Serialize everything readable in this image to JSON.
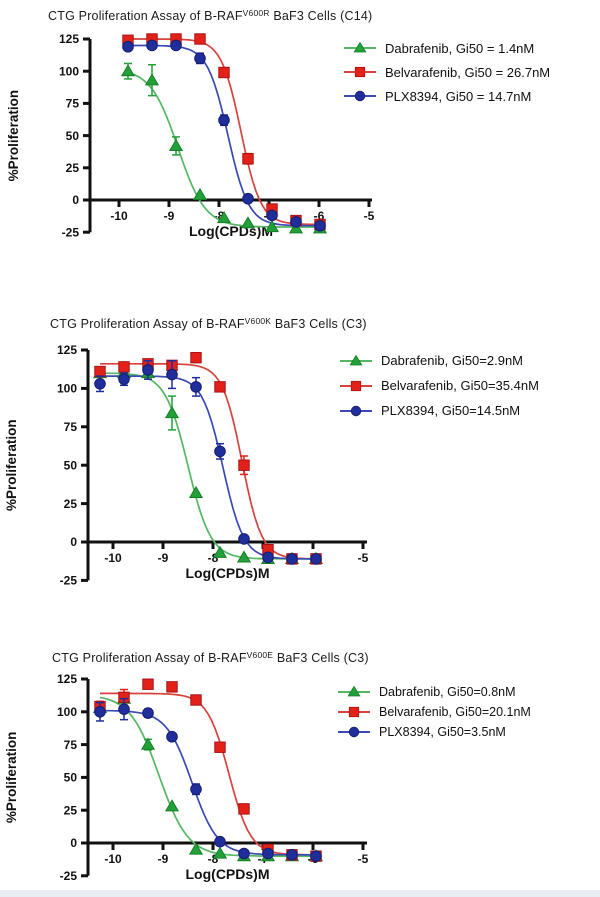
{
  "figure": {
    "background": "#ffffff",
    "bottom_strip_color": "#e8edf3"
  },
  "chart_data": [
    {
      "type": "line",
      "title_prefix": "CTG Proliferation Assay of B-RAF",
      "title_sup": "V600R",
      "title_suffix": " BaF3 Cells (C14)",
      "xlabel": "Log(CPDs)M",
      "ylabel": "%Proliferation",
      "xticks": [
        -10,
        -9,
        -8,
        -7,
        -6,
        -5
      ],
      "yticks": [
        125,
        100,
        75,
        50,
        25,
        0,
        -25
      ],
      "xlim": [
        -10.6,
        -4.9
      ],
      "ylim": [
        -25,
        130
      ],
      "legend_position": "right",
      "grid": false,
      "x": [
        -9.82,
        -9.34,
        -8.86,
        -8.38,
        -7.9,
        -7.42,
        -6.94,
        -6.46,
        -5.98
      ],
      "series": [
        {
          "name": "Dabrafenib",
          "legend": "Dabrafenib, Gi50 = 1.4nM",
          "gi50": "1.4nM",
          "marker": "triangle",
          "color": "#23a038",
          "edge": "#157f28",
          "line": "#55b763",
          "values": [
            100,
            93,
            42,
            4,
            -14,
            -18,
            -21,
            -22,
            -22
          ],
          "errors": [
            6,
            12,
            7,
            0,
            0,
            0,
            0,
            0,
            0
          ],
          "fit": {
            "top": 102,
            "bottom": -21,
            "logec50": -8.82,
            "hill": 1.6
          }
        },
        {
          "name": "Belvarafenib",
          "legend": "Belvarafenib, Gi50 = 26.7nM",
          "gi50": "26.7nM",
          "marker": "square",
          "color": "#e32119",
          "edge": "#a81313",
          "line": "#d8423c",
          "values": [
            124,
            125,
            125,
            125,
            99,
            32,
            -7,
            -16,
            -19
          ],
          "errors": [
            0,
            0,
            0,
            0,
            3,
            4,
            0,
            0,
            0
          ],
          "fit": {
            "top": 125,
            "bottom": -19,
            "logec50": -7.56,
            "hill": 2.2
          }
        },
        {
          "name": "PLX8394",
          "legend": "PLX8394, Gi50 = 14.7nM",
          "gi50": "14.7nM",
          "marker": "circle",
          "color": "#202e9c",
          "edge": "#141d6e",
          "line": "#3a49b4",
          "values": [
            119,
            120,
            120,
            110,
            62,
            1,
            -12,
            -17,
            -20
          ],
          "errors": [
            0,
            0,
            0,
            4,
            4,
            0,
            0,
            0,
            0
          ],
          "fit": {
            "top": 120,
            "bottom": -20,
            "logec50": -7.82,
            "hill": 2.1
          }
        }
      ]
    },
    {
      "type": "line",
      "title_prefix": "CTG Proliferation Assay of B-RAF",
      "title_sup": "V600K",
      "title_suffix": " BaF3 Cells (C3)",
      "xlabel": "Log(CPDs)M",
      "ylabel": "%Proliferation",
      "xticks": [
        -10,
        -9,
        -8,
        -7,
        -6,
        -5
      ],
      "yticks": [
        125,
        100,
        75,
        50,
        25,
        0,
        -25
      ],
      "xlim": [
        -10.6,
        -4.9
      ],
      "ylim": [
        -25,
        130
      ],
      "legend_position": "right",
      "grid": false,
      "x": [
        -10.26,
        -9.78,
        -9.3,
        -8.82,
        -8.34,
        -7.86,
        -7.38,
        -6.9,
        -6.42,
        -5.94
      ],
      "series": [
        {
          "name": "Dabrafenib",
          "legend": "Dabrafenib, Gi50=2.9nM",
          "gi50": "2.9nM",
          "marker": "triangle",
          "color": "#23a038",
          "edge": "#157f28",
          "line": "#55b763",
          "values": [
            110,
            110,
            110,
            84,
            32,
            -7,
            -10,
            -11,
            -11,
            -11
          ],
          "errors": [
            0,
            0,
            0,
            11,
            0,
            0,
            0,
            0,
            0,
            0
          ],
          "fit": {
            "top": 110,
            "bottom": -11,
            "logec50": -8.5,
            "hill": 1.9
          }
        },
        {
          "name": "Belvarafenib",
          "legend": "Belvarafenib, Gi50=35.4nM",
          "gi50": "35.4nM",
          "marker": "square",
          "color": "#e32119",
          "edge": "#a81313",
          "line": "#d8423c",
          "values": [
            111,
            114,
            116,
            115,
            120,
            101,
            50,
            -5,
            -11,
            -11
          ],
          "errors": [
            3,
            2,
            2,
            0,
            0,
            3,
            6,
            0,
            0,
            0
          ],
          "fit": {
            "top": 116,
            "bottom": -11,
            "logec50": -7.42,
            "hill": 2.2
          }
        },
        {
          "name": "PLX8394",
          "legend": "PLX8394, Gi50=14.5nM",
          "gi50": "14.5nM",
          "marker": "circle",
          "color": "#202e9c",
          "edge": "#141d6e",
          "line": "#3a49b4",
          "values": [
            103,
            106,
            112,
            109,
            101,
            59,
            2,
            -10,
            -11,
            -11
          ],
          "errors": [
            5,
            4,
            6,
            9,
            6,
            5,
            0,
            0,
            0,
            0
          ],
          "fit": {
            "top": 108,
            "bottom": -11,
            "logec50": -7.8,
            "hill": 2.1
          }
        }
      ]
    },
    {
      "type": "line",
      "title_prefix": "CTG Proliferation Assay of B-RAF",
      "title_sup": "V600E",
      "title_suffix": " BaF3 Cells (C3)",
      "xlabel": "Log(CPDs)M",
      "ylabel": "%Proliferation",
      "xticks": [
        -10,
        -9,
        -8,
        -7,
        -6,
        -5
      ],
      "yticks": [
        125,
        100,
        75,
        50,
        25,
        0,
        -25
      ],
      "xlim": [
        -10.6,
        -4.9
      ],
      "ylim": [
        -25,
        130
      ],
      "legend_position": "right",
      "grid": false,
      "x": [
        -10.26,
        -9.78,
        -9.3,
        -8.82,
        -8.34,
        -7.86,
        -7.38,
        -6.9,
        -6.42,
        -5.94
      ],
      "series": [
        {
          "name": "Dabrafenib",
          "legend": "Dabrafenib, Gi50=0.8nM",
          "gi50": "0.8nM",
          "marker": "triangle",
          "color": "#23a038",
          "edge": "#157f28",
          "line": "#55b763",
          "values": [
            103,
            110,
            75,
            28,
            -5,
            -8,
            -10,
            -10,
            -10,
            -10
          ],
          "errors": [
            0,
            0,
            4,
            0,
            0,
            0,
            0,
            0,
            0,
            0
          ],
          "fit": {
            "top": 113,
            "bottom": -10,
            "logec50": -9.08,
            "hill": 1.5
          }
        },
        {
          "name": "Belvarafenib",
          "legend": "Belvarafenib, Gi50=20.1nM",
          "gi50": "20.1nM",
          "marker": "square",
          "color": "#e32119",
          "edge": "#a81313",
          "line": "#d8423c",
          "values": [
            104,
            111,
            121,
            119,
            109,
            73,
            26,
            -5,
            -9,
            -10
          ],
          "errors": [
            4,
            6,
            0,
            0,
            0,
            0,
            3,
            0,
            0,
            0
          ],
          "fit": {
            "top": 114,
            "bottom": -9,
            "logec50": -7.68,
            "hill": 2.0
          }
        },
        {
          "name": "PLX8394",
          "legend": "PLX8394, Gi50=3.5nM",
          "gi50": "3.5nM",
          "marker": "circle",
          "color": "#202e9c",
          "edge": "#141d6e",
          "line": "#3a49b4",
          "values": [
            100,
            102,
            99,
            81,
            41,
            1,
            -8,
            -8,
            -9,
            -10
          ],
          "errors": [
            7,
            8,
            3,
            0,
            4,
            0,
            0,
            0,
            0,
            0
          ],
          "fit": {
            "top": 101,
            "bottom": -9,
            "logec50": -8.42,
            "hill": 1.7
          }
        }
      ]
    }
  ]
}
